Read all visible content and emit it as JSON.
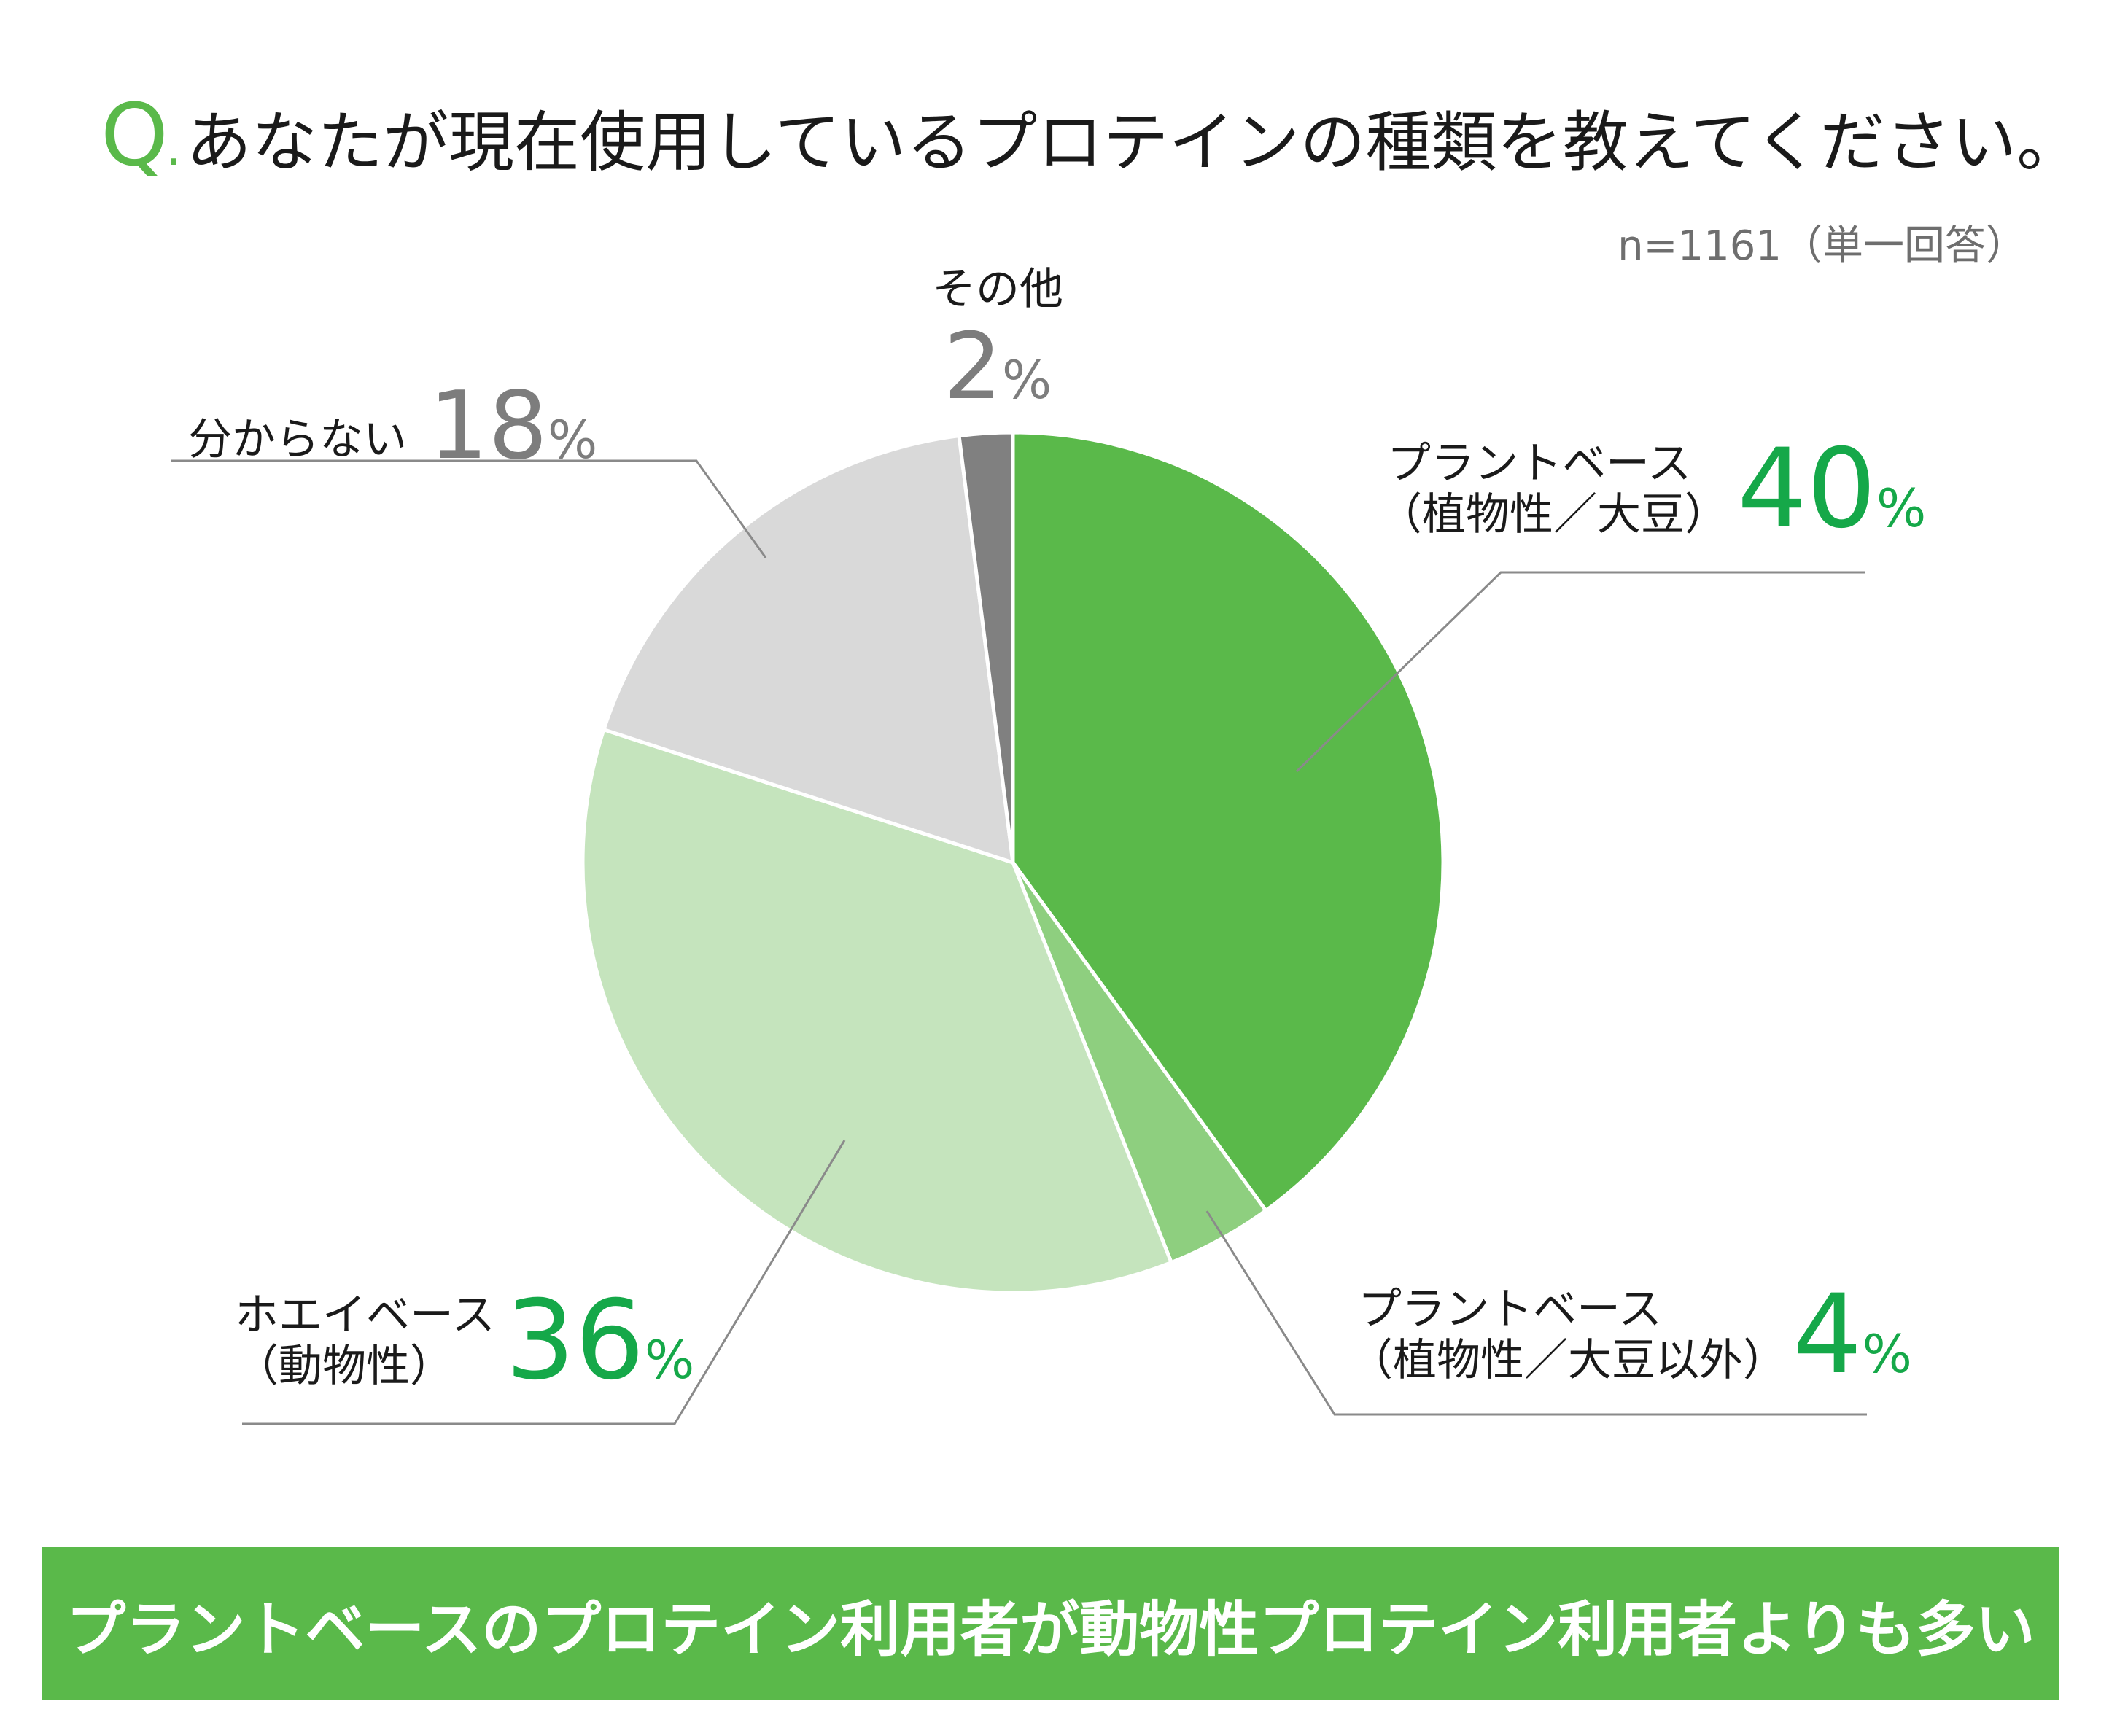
{
  "title": {
    "q_mark": "Q",
    "q_dot": ".",
    "question": "あなたが現在使用しているプロテインの種類を教えてください。"
  },
  "sample_note": "n=1161（単一回答）",
  "chart_data": {
    "type": "pie",
    "title": "あなたが現在使用しているプロテインの種類を教えてください。",
    "start_angle_deg": 0,
    "direction": "clockwise",
    "slices": [
      {
        "id": "plant-soy",
        "label_line1": "プラントベース",
        "label_line2": "（植物性／大豆）",
        "value": 40,
        "pct_num": "40",
        "pct_sym": "%",
        "color": "#5ab94a"
      },
      {
        "id": "plant-other",
        "label_line1": "プラントベース",
        "label_line2": "（植物性／大豆以外）",
        "value": 4,
        "pct_num": "4",
        "pct_sym": "%",
        "color": "#8ecf7f"
      },
      {
        "id": "whey",
        "label_line1": "ホエイベース",
        "label_line2": "（動物性）",
        "value": 36,
        "pct_num": "36",
        "pct_sym": "%",
        "color": "#c5e4bd"
      },
      {
        "id": "unknown",
        "label_line1": "分からない",
        "label_line2": "",
        "value": 18,
        "pct_num": "18",
        "pct_sym": "%",
        "color": "#d9d9d9"
      },
      {
        "id": "other",
        "label_line1": "その他",
        "label_line2": "",
        "value": 2,
        "pct_num": "2",
        "pct_sym": "%",
        "color": "#808080"
      }
    ]
  },
  "colors": {
    "accent": "#5ab94a",
    "pct_green": "#15a849",
    "pct_gray": "#7d7d7d",
    "leader": "#8a8a8a"
  },
  "banner": {
    "text": "プラントベースのプロテイン利用者が動物性プロテイン利用者よりも多い"
  }
}
